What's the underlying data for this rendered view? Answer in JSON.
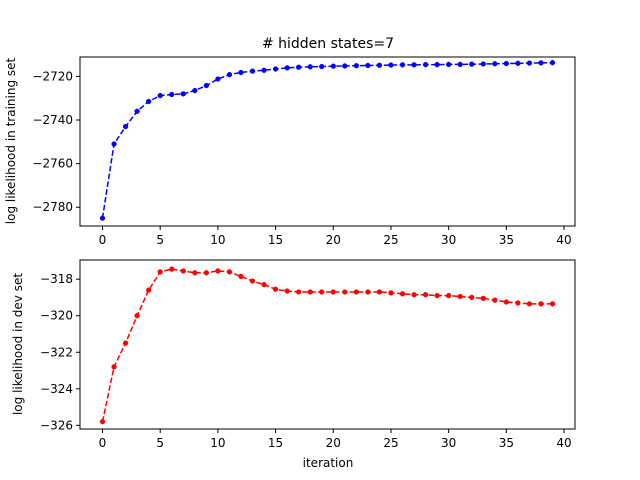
{
  "chart_data": [
    {
      "type": "line",
      "title": "# hidden states=7",
      "xlabel": "",
      "ylabel": "log likelihood in training set",
      "color": "#0000ff",
      "line_style": "dashed",
      "marker": "dot",
      "xlim": [
        -1.95,
        40.95
      ],
      "ylim": [
        -2788.6,
        -2711.1
      ],
      "xticks": [
        0,
        5,
        10,
        15,
        20,
        25,
        30,
        35,
        40
      ],
      "yticks": [
        -2780,
        -2760,
        -2740,
        -2720
      ],
      "xtick_labels": [
        "0",
        "5",
        "10",
        "15",
        "20",
        "25",
        "30",
        "35",
        "40"
      ],
      "ytick_labels": [
        "−2780",
        "−2760",
        "−2740",
        "−2720"
      ],
      "x": [
        0,
        1,
        2,
        3,
        4,
        5,
        6,
        7,
        8,
        9,
        10,
        11,
        12,
        13,
        14,
        15,
        16,
        17,
        18,
        19,
        20,
        21,
        22,
        23,
        24,
        25,
        26,
        27,
        28,
        29,
        30,
        31,
        32,
        33,
        34,
        35,
        36,
        37,
        38,
        39
      ],
      "series": [
        {
          "values": [
            -2785.0,
            -2751.0,
            -2743.0,
            -2736.0,
            -2731.5,
            -2728.8,
            -2728.3,
            -2728.0,
            -2726.5,
            -2724.2,
            -2721.2,
            -2719.2,
            -2718.2,
            -2717.6,
            -2717.2,
            -2716.6,
            -2716.1,
            -2715.8,
            -2715.6,
            -2715.5,
            -2715.3,
            -2715.2,
            -2715.1,
            -2715.0,
            -2714.9,
            -2714.8,
            -2714.7,
            -2714.7,
            -2714.6,
            -2714.6,
            -2714.5,
            -2714.5,
            -2714.4,
            -2714.3,
            -2714.2,
            -2714.1,
            -2714.0,
            -2713.9,
            -2713.8,
            -2713.7
          ]
        }
      ]
    },
    {
      "type": "line",
      "title": "",
      "xlabel": "iteration",
      "ylabel": "log likelihood in dev set",
      "color": "#ff0000",
      "line_style": "dashed",
      "marker": "dot",
      "xlim": [
        -1.95,
        40.95
      ],
      "ylim": [
        -326.2,
        -316.95
      ],
      "xticks": [
        0,
        5,
        10,
        15,
        20,
        25,
        30,
        35,
        40
      ],
      "yticks": [
        -326,
        -324,
        -322,
        -320,
        -318
      ],
      "xtick_labels": [
        "0",
        "5",
        "10",
        "15",
        "20",
        "25",
        "30",
        "35",
        "40"
      ],
      "ytick_labels": [
        "−326",
        "−324",
        "−322",
        "−320",
        "−318"
      ],
      "x": [
        0,
        1,
        2,
        3,
        4,
        5,
        6,
        7,
        8,
        9,
        10,
        11,
        12,
        13,
        14,
        15,
        16,
        17,
        18,
        19,
        20,
        21,
        22,
        23,
        24,
        25,
        26,
        27,
        28,
        29,
        30,
        31,
        32,
        33,
        34,
        35,
        36,
        37,
        38,
        39
      ],
      "series": [
        {
          "values": [
            -325.8,
            -322.8,
            -321.5,
            -320.0,
            -318.6,
            -317.6,
            -317.45,
            -317.55,
            -317.65,
            -317.65,
            -317.55,
            -317.6,
            -317.85,
            -318.1,
            -318.3,
            -318.55,
            -318.65,
            -318.7,
            -318.7,
            -318.7,
            -318.7,
            -318.7,
            -318.7,
            -318.7,
            -318.7,
            -318.75,
            -318.8,
            -318.85,
            -318.85,
            -318.9,
            -318.9,
            -318.95,
            -319.0,
            -319.05,
            -319.15,
            -319.25,
            -319.3,
            -319.35,
            -319.35,
            -319.35
          ]
        }
      ]
    }
  ]
}
